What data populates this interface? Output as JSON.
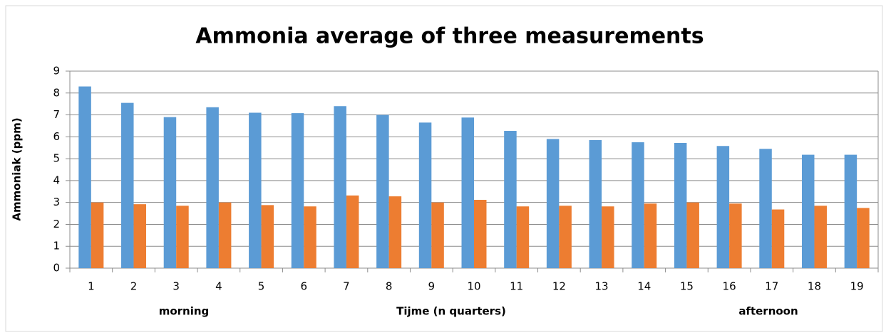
{
  "chart_data": {
    "type": "bar",
    "title": "Ammonia average of three measurements",
    "y_label": "Ammoniak (ppm)",
    "x_label": "Tijme (n quarters)",
    "annotations": [
      "morning",
      "afternoon"
    ],
    "categories": [
      "1",
      "2",
      "3",
      "4",
      "5",
      "6",
      "7",
      "8",
      "9",
      "10",
      "11",
      "12",
      "13",
      "14",
      "15",
      "16",
      "17",
      "18",
      "19"
    ],
    "series": [
      {
        "color": "#5b9bd5",
        "values": [
          8.3,
          7.55,
          6.9,
          7.35,
          7.1,
          7.08,
          7.4,
          7.0,
          6.65,
          6.88,
          6.27,
          5.9,
          5.85,
          5.75,
          5.72,
          5.58,
          5.45,
          5.18,
          5.18
        ]
      },
      {
        "color": "#ed7d31",
        "values": [
          3.0,
          2.92,
          2.85,
          3.0,
          2.88,
          2.82,
          3.32,
          3.28,
          3.0,
          3.12,
          2.82,
          2.85,
          2.82,
          2.95,
          3.0,
          2.95,
          2.68,
          2.85,
          2.75
        ]
      }
    ],
    "ylim": [
      0,
      9
    ],
    "yticks": [
      0,
      1,
      2,
      3,
      4,
      5,
      6,
      7,
      8,
      9
    ],
    "grid": true
  }
}
